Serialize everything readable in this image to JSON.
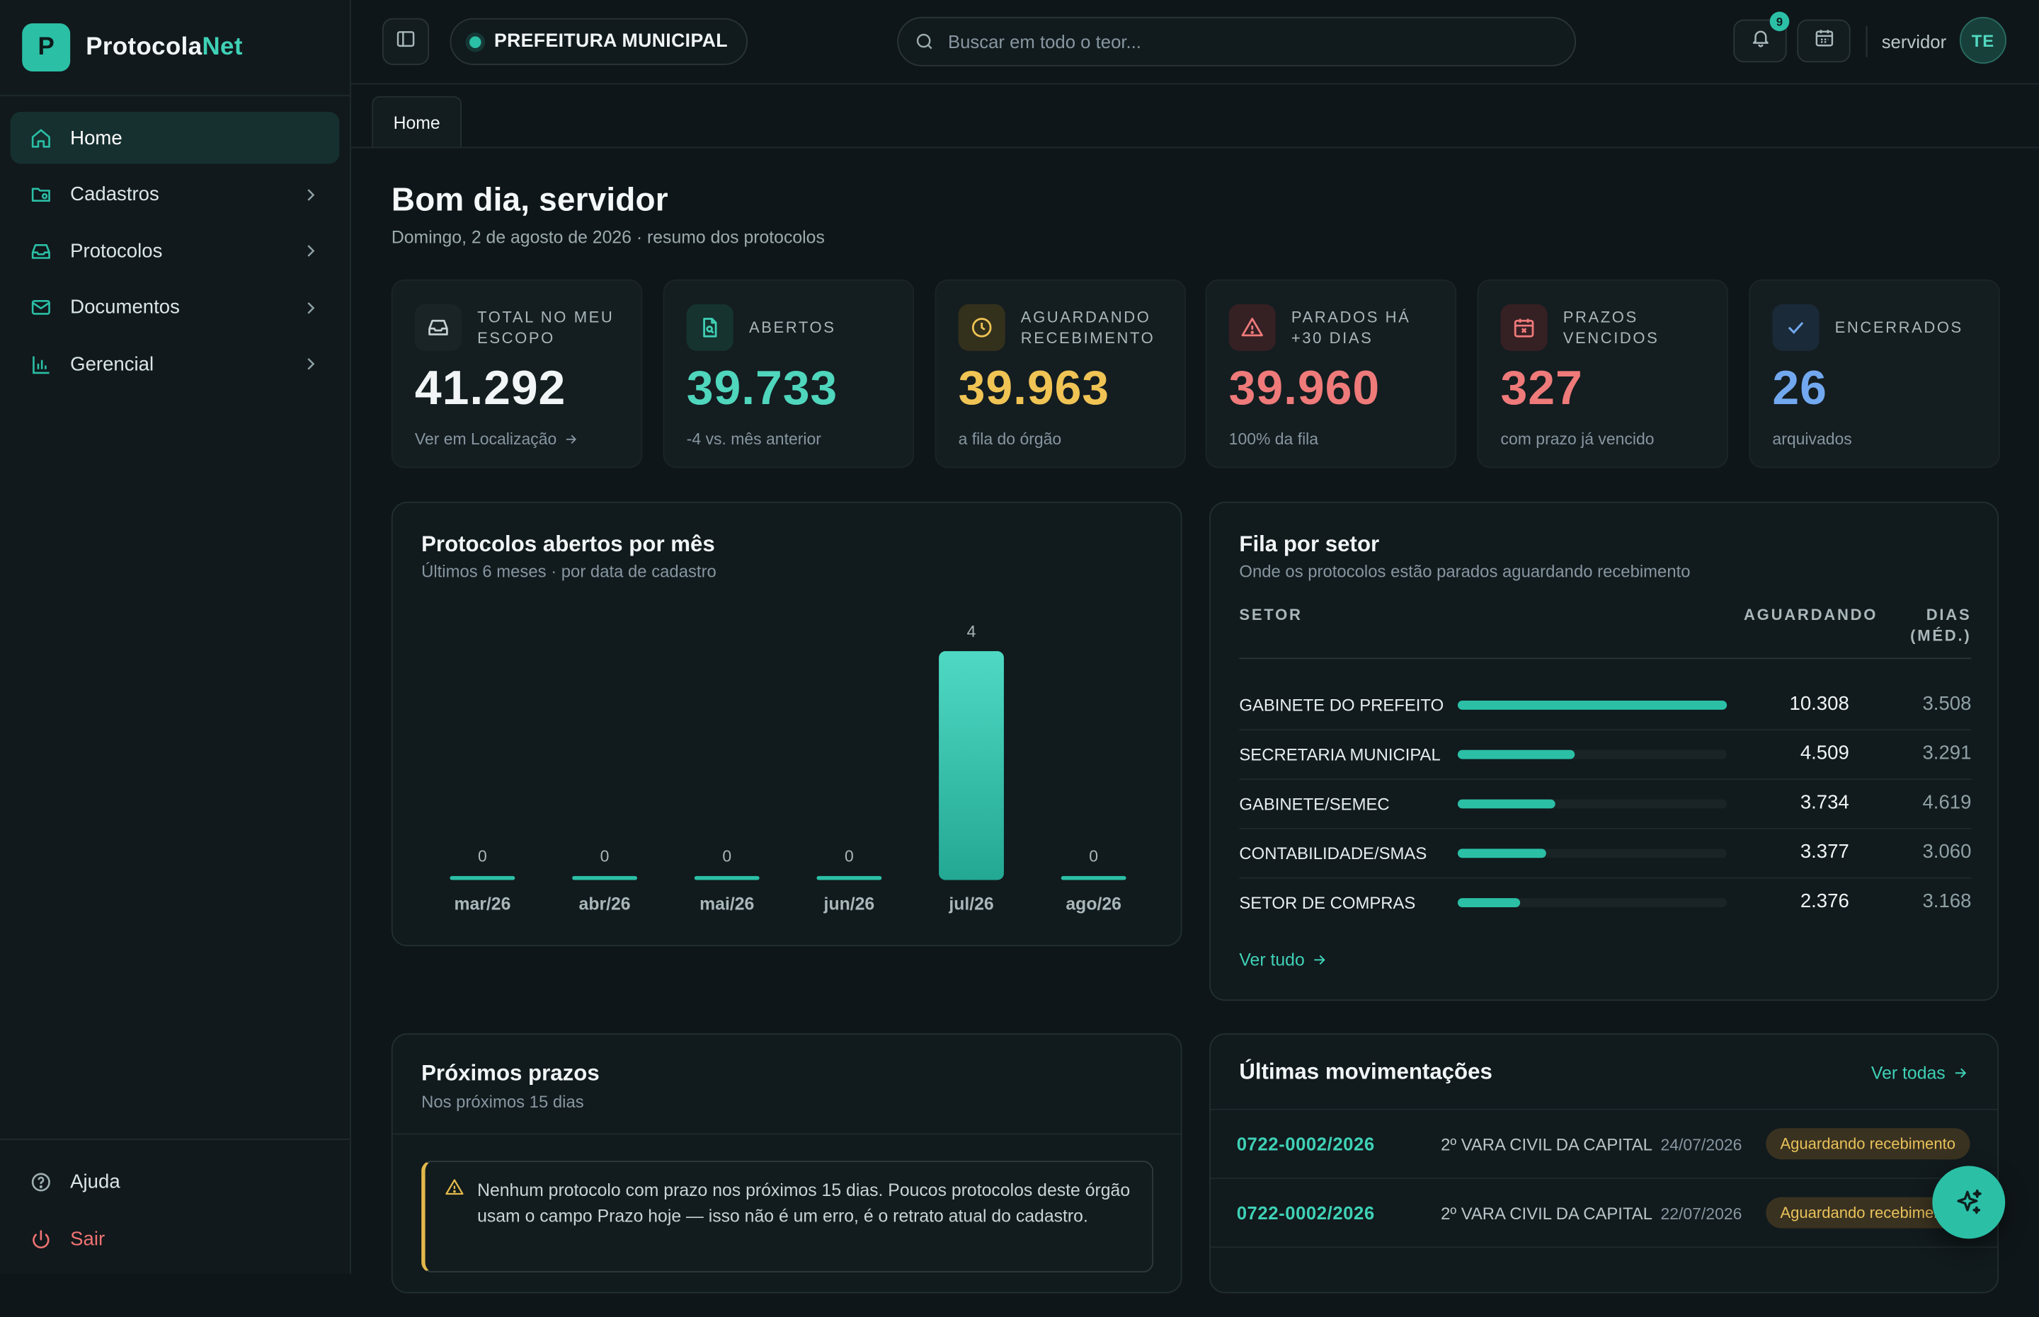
{
  "brand": {
    "letter": "P",
    "name_a": "Protocola",
    "name_b": "Net"
  },
  "sidebar": {
    "items": [
      {
        "label": "Home",
        "icon": "home-icon",
        "active": true
      },
      {
        "label": "Cadastros",
        "icon": "folder-icon"
      },
      {
        "label": "Protocolos",
        "icon": "inbox-icon"
      },
      {
        "label": "Documentos",
        "icon": "mail-icon"
      },
      {
        "label": "Gerencial",
        "icon": "bar-chart-icon"
      }
    ],
    "help": "Ajuda",
    "exit": "Sair"
  },
  "topbar": {
    "org": "PREFEITURA MUNICIPAL",
    "search_placeholder": "Buscar em todo o teor...",
    "notifications": "9",
    "user": "servidor",
    "avatar": "TE"
  },
  "tabs": [
    "Home"
  ],
  "greeting": {
    "title": "Bom dia, servidor",
    "subtitle": "Domingo, 2 de agosto de 2026 · resumo dos protocolos"
  },
  "kpis": [
    {
      "label": "TOTAL NO MEU ESCOPO",
      "value": "41.292",
      "sub": "Ver em Localização",
      "color": "#f1f5f6",
      "icon": "inbox-icon"
    },
    {
      "label": "ABERTOS",
      "value": "39.733",
      "sub": "-4 vs. mês anterior",
      "color": "#4fd6bd",
      "icon": "file-search-icon"
    },
    {
      "label": "AGUARDANDO RECEBIMENTO",
      "value": "39.963",
      "sub": "a fila do órgão",
      "color": "#f0c454",
      "icon": "clock-icon"
    },
    {
      "label": "PARADOS HÁ +30 DIAS",
      "value": "39.960",
      "sub": "100% da fila",
      "color": "#ef7a7a",
      "icon": "alert-icon"
    },
    {
      "label": "PRAZOS VENCIDOS",
      "value": "327",
      "sub": "com prazo já vencido",
      "color": "#ef7a7a",
      "icon": "calendar-x-icon"
    },
    {
      "label": "ENCERRADOS",
      "value": "26",
      "sub": "arquivados",
      "color": "#72a8f0",
      "icon": "check-icon"
    }
  ],
  "monthly": {
    "title": "Protocolos abertos por mês",
    "subtitle": "Últimos 6 meses · por data de cadastro"
  },
  "chart_data": {
    "type": "bar",
    "categories": [
      "mar/26",
      "abr/26",
      "mai/26",
      "jun/26",
      "jul/26",
      "ago/26"
    ],
    "values": [
      0,
      0,
      0,
      0,
      4,
      0
    ],
    "title": "Protocolos abertos por mês",
    "xlabel": "",
    "ylabel": "",
    "ylim": [
      0,
      4
    ],
    "color": "#2bbfa6"
  },
  "queue": {
    "title": "Fila por setor",
    "subtitle": "Onde os protocolos estão parados aguardando recebimento",
    "col_setor": "SETOR",
    "col_aguardando": "AGUARDANDO",
    "col_dias": "DIAS (MÉD.)",
    "rows": [
      {
        "name": "GABINETE DO PREFEITO",
        "aguardando": "10.308",
        "dias": "3.508",
        "share": 1.0
      },
      {
        "name": "SECRETARIA MUNICIPAL",
        "aguardando": "4.509",
        "dias": "3.291",
        "share": 0.437
      },
      {
        "name": "GABINETE/SEMEC",
        "aguardando": "3.734",
        "dias": "4.619",
        "share": 0.362
      },
      {
        "name": "CONTABILIDADE/SMAS",
        "aguardando": "3.377",
        "dias": "3.060",
        "share": 0.328
      },
      {
        "name": "SETOR DE COMPRAS",
        "aguardando": "2.376",
        "dias": "3.168",
        "share": 0.23
      }
    ],
    "link": "Ver tudo"
  },
  "deadlines": {
    "title": "Próximos prazos",
    "subtitle": "Nos próximos 15 dias",
    "notice": "Nenhum protocolo com prazo nos próximos 15 dias. Poucos protocolos deste órgão usam o campo Prazo hoje — isso não é um erro, é o retrato atual do cadastro."
  },
  "movements": {
    "title": "Últimas movimentações",
    "link": "Ver todas",
    "rows": [
      {
        "number": "0722-0002/2026",
        "org": "2º VARA CIVIL DA CAPITAL",
        "date": "24/07/2026",
        "status": "Aguardando recebimento"
      },
      {
        "number": "0722-0002/2026",
        "org": "2º VARA CIVIL DA CAPITAL",
        "date": "22/07/2026",
        "status": "Aguardando recebimento"
      }
    ]
  }
}
